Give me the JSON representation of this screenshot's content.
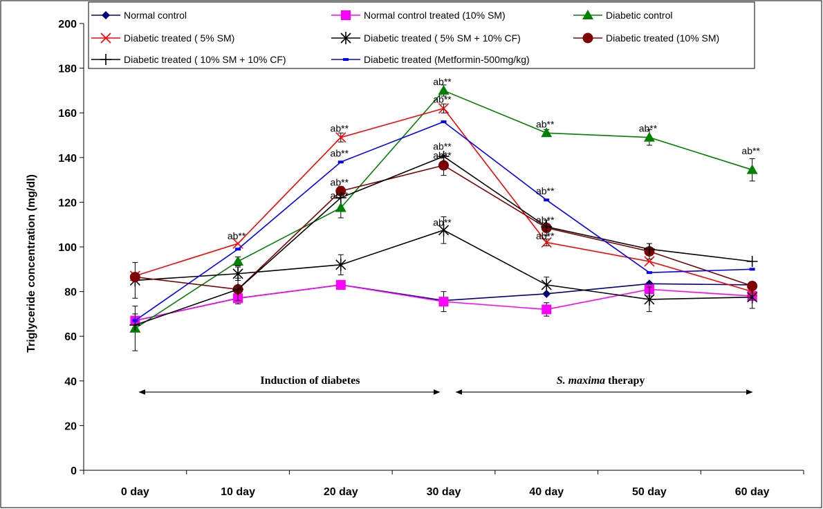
{
  "chart_data": {
    "type": "line",
    "ylabel": "Triglyceride concentration (mg/dl)",
    "xlabel": "",
    "categories": [
      "0 day",
      "10 day",
      "20 day",
      "30 day",
      "40 day",
      "50 day",
      "60 day"
    ],
    "ylim": [
      0,
      200
    ],
    "yticks": [
      0,
      20,
      40,
      60,
      80,
      100,
      120,
      140,
      160,
      180,
      200
    ],
    "grid": false,
    "legend_position": "top",
    "series": [
      {
        "name": "Normal control",
        "color": "#000080",
        "marker": "diamond",
        "values": [
          67,
          77,
          83,
          76,
          79,
          83.5,
          83
        ],
        "err": [
          0,
          0,
          0,
          0,
          0,
          0,
          0
        ]
      },
      {
        "name": "Normal control treated (10% SM)",
        "color": "#FF00FF",
        "marker": "square",
        "values": [
          67,
          77,
          83,
          75.5,
          72,
          81,
          78
        ],
        "err": [
          3,
          2.5,
          2,
          4.5,
          3,
          3,
          2
        ]
      },
      {
        "name": "Diabetic control",
        "color": "#008000",
        "marker": "triangle",
        "values": [
          63.5,
          93.5,
          117.5,
          170,
          151,
          149,
          134.5
        ],
        "err": [
          10,
          2,
          4.5,
          2.5,
          1.5,
          3.5,
          5
        ]
      },
      {
        "name": "Diabetic treated ( 5% SM)",
        "color": "#FF0000",
        "marker": "x",
        "values": [
          87,
          101.5,
          149,
          162,
          102,
          93.5,
          80
        ],
        "err": [
          0,
          0,
          2,
          2,
          1.5,
          0,
          0
        ]
      },
      {
        "name": "Diabetic treated ( 5% SM + 10% CF)",
        "color": "#000000",
        "marker": "star",
        "values": [
          85,
          88,
          92,
          107.5,
          83,
          76.5,
          77.5
        ],
        "err": [
          8,
          3,
          4.5,
          6,
          3.5,
          5.5,
          5
        ]
      },
      {
        "name": "Diabetic treated (10% SM)",
        "color": "#800000",
        "marker": "circle",
        "values": [
          86.5,
          81,
          125,
          136.5,
          108.5,
          98,
          82.5
        ],
        "err": [
          0,
          0,
          2,
          4.5,
          3.5,
          3.5,
          0
        ]
      },
      {
        "name": "Diabetic treated ( 10% SM + 10% CF)",
        "color": "#000000",
        "marker": "plus",
        "values": [
          65,
          81,
          122,
          140.5,
          109,
          99,
          93.5
        ],
        "err": [
          0,
          5,
          0,
          0,
          0,
          0,
          0
        ]
      },
      {
        "name": "Diabetic treated (Metformin-500mg/kg)",
        "color": "#0000FF",
        "marker": "dash",
        "values": [
          67,
          99,
          138,
          156,
          121,
          88.5,
          90
        ],
        "err": [
          0,
          0,
          0,
          0,
          0,
          0,
          0
        ]
      }
    ],
    "annotations": [
      {
        "text": "ab**",
        "x": 1,
        "y": 101
      },
      {
        "text": "ab**",
        "x": 2,
        "y": 149
      },
      {
        "text": "ab**",
        "x": 2,
        "y": 138
      },
      {
        "text": "ab**",
        "x": 2,
        "y": 125
      },
      {
        "text": "ab**",
        "x": 2,
        "y": 119
      },
      {
        "text": "ab**",
        "x": 3,
        "y": 170
      },
      {
        "text": "ab**",
        "x": 3,
        "y": 162
      },
      {
        "text": "ab**",
        "x": 3,
        "y": 141
      },
      {
        "text": "ab**",
        "x": 3,
        "y": 137
      },
      {
        "text": "ab**",
        "x": 3,
        "y": 107
      },
      {
        "text": "ab**",
        "x": 4,
        "y": 151
      },
      {
        "text": "ab**",
        "x": 4,
        "y": 121
      },
      {
        "text": "ab**",
        "x": 4,
        "y": 108
      },
      {
        "text": "ab**",
        "x": 4,
        "y": 101
      },
      {
        "text": "ab**",
        "x": 5,
        "y": 149
      },
      {
        "text": "ab**",
        "x": 6,
        "y": 139
      }
    ],
    "phases": [
      {
        "label": "Induction of diabetes",
        "from": 0,
        "to": 3
      },
      {
        "label_italic": "S. maxima",
        "label": " therapy",
        "from": 3,
        "to": 6
      }
    ]
  }
}
